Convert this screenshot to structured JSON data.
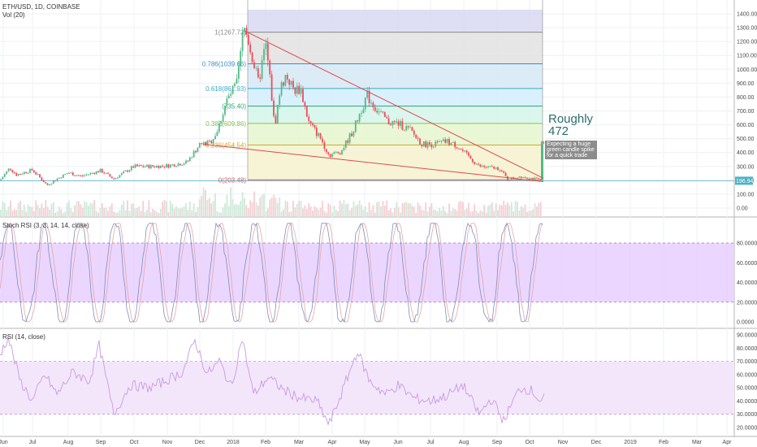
{
  "header": {
    "symbol": "ETH/USD, 1D, COINBASE",
    "volume": "Vol (20)",
    "stoch_title": "Stoch RSI (3, 3, 14, 14, close)",
    "rsi_title": "RSI (14, close)"
  },
  "annotations": {
    "target_line1": "Roughly",
    "target_line2": "472",
    "note": "Expecting a huge green candle spike for a quick trade"
  },
  "price_badge": "196.94",
  "colors": {
    "up": "#53b987",
    "down": "#eb4d5c",
    "trendline": "#e0494a",
    "stoch_fill": "#e6ccff",
    "stoch_k": "#7f8fb8",
    "stoch_d": "#e8a6a6",
    "rsi_line": "#c89ae0",
    "rsi_fill": "#f3e6fb"
  },
  "chart_data": [
    {
      "type": "line",
      "title": "ETH/USD, 1D, COINBASE",
      "note": "candlestick price panel with Fibonacci retracement",
      "x_ticks": [
        "Jun",
        "Jul",
        "Aug",
        "Sep",
        "Oct",
        "Nov",
        "Dec",
        "2018",
        "Feb",
        "Mar",
        "Apr",
        "May",
        "Jun",
        "Jul",
        "Aug",
        "Sep",
        "Oct",
        "Nov",
        "Dec",
        "2019",
        "Feb",
        "Mar",
        "Apr"
      ],
      "y_ticks": [
        "1400.00",
        "1300.00",
        "1200.00",
        "1100.00",
        "1000.00",
        "900.00",
        "800.00",
        "700.00",
        "600.00",
        "500.00",
        "400.00",
        "300.00",
        "200.00",
        "100.00",
        "0.00"
      ],
      "ylim": [
        0,
        1430
      ],
      "series": [
        {
          "x": [
            "Jun",
            "Jul",
            "Aug",
            "Sep",
            "Oct",
            "Nov",
            "Dec",
            "2018",
            "Feb",
            "Mar",
            "Apr",
            "May",
            "Jun",
            "Jul",
            "Aug",
            "Sep",
            "Oct"
          ],
          "values": [
            220,
            290,
            255,
            290,
            300,
            310,
            460,
            1300,
            900,
            770,
            400,
            740,
            560,
            460,
            300,
            220,
            200
          ]
        }
      ],
      "fib_levels": [
        {
          "label": "1(1267.73)",
          "value": 1267.73
        },
        {
          "label": "0.786(1039.66)",
          "value": 1039.66
        },
        {
          "label": "0.618(861.93)",
          "value": 861.93
        },
        {
          "label": "(735.40)",
          "value": 735.4
        },
        {
          "label": "0.382(609.86)",
          "value": 609.86
        },
        {
          "label": "0.236(454.54)",
          "value": 454.54
        },
        {
          "label": "0(203.48)",
          "value": 203.48
        }
      ],
      "current_price": 196.94
    },
    {
      "type": "line",
      "title": "Stoch RSI (3, 3, 14, 14, close)",
      "y_ticks": [
        "80.0000",
        "60.0000",
        "40.0000",
        "20.0000",
        "0.0000"
      ],
      "ylim": [
        0,
        100
      ],
      "band": [
        20,
        80
      ]
    },
    {
      "type": "line",
      "title": "RSI (14, close)",
      "y_ticks": [
        "90.0000",
        "80.0000",
        "70.0000",
        "60.0000",
        "50.0000",
        "40.0000",
        "30.0000",
        "20.0000"
      ],
      "ylim": [
        15,
        95
      ],
      "band": [
        30,
        70
      ]
    }
  ]
}
